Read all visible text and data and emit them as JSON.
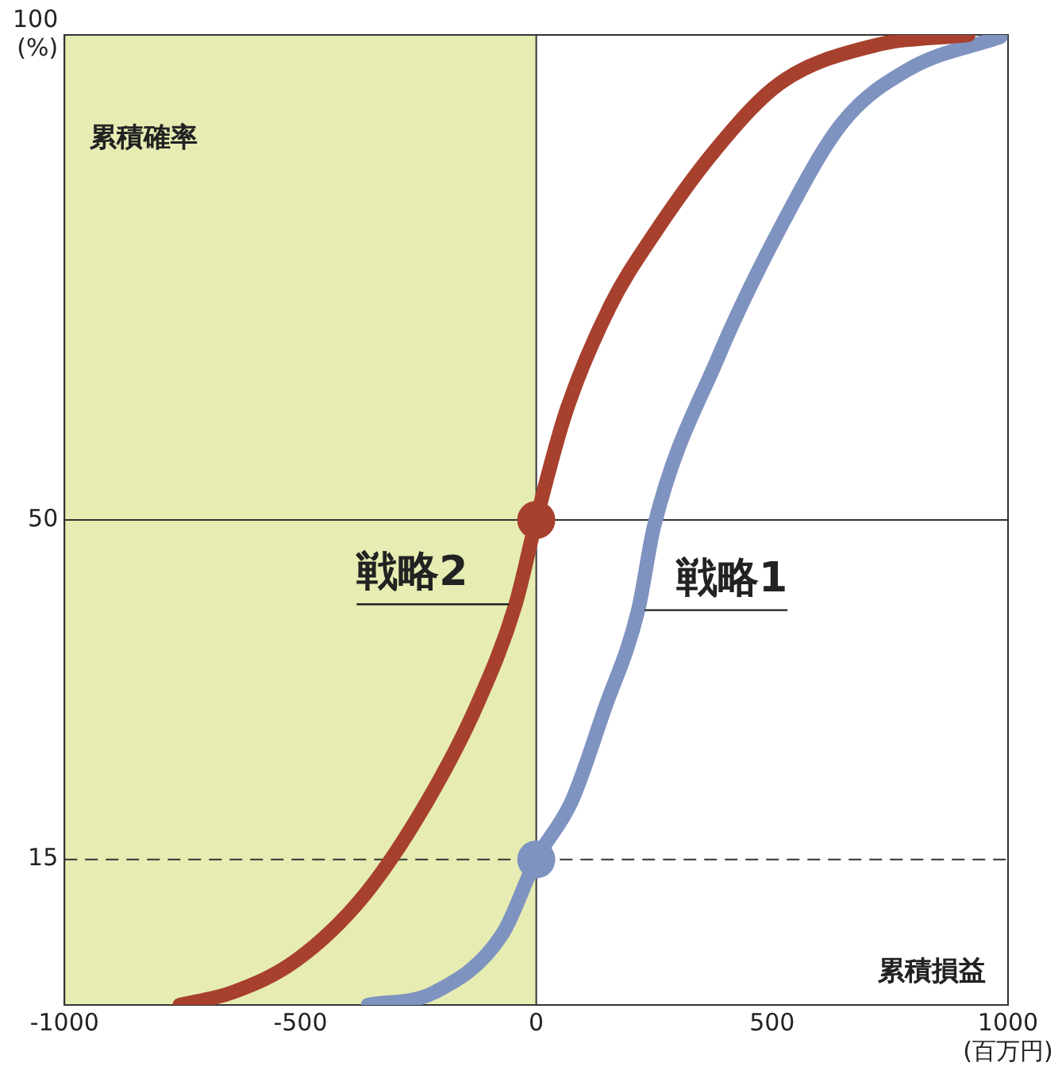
{
  "chart_data": {
    "type": "line",
    "xlabel": "累積損益",
    "ylabel": "累積確率",
    "xlim": [
      -1000,
      1000
    ],
    "xticks": [
      -1000,
      -500,
      0,
      500,
      {
        "value": 1000,
        "label": "1000\n(百万円)"
      }
    ],
    "ylim": [
      0,
      100
    ],
    "yticks": [
      15,
      50,
      {
        "value": 100,
        "label": "100\n(%)"
      }
    ],
    "grid": false,
    "legend": false,
    "marker": "none",
    "line_style": "solid",
    "bands": [
      {
        "axis": "x",
        "from": -1000,
        "to": 0,
        "color": "#e6ecb2"
      }
    ],
    "ref_lines": [
      {
        "axis": "x",
        "value": 0,
        "line_style": "solid",
        "color": "#333333"
      },
      {
        "axis": "y",
        "value": 50,
        "line_style": "solid",
        "color": "#333333"
      },
      {
        "axis": "y",
        "value": 15,
        "line_style": "dashed",
        "color": "#333333"
      }
    ],
    "series": [
      {
        "name": "戦略2",
        "color": "#a8402e",
        "x": [
          -756,
          -644,
          -509,
          -363,
          -231,
          -125,
          -44,
          0,
          62,
          156,
          250,
          384,
          516,
          716,
          916
        ],
        "values": [
          0,
          1.3,
          4.6,
          11.4,
          21,
          31,
          41.3,
          50,
          61,
          72,
          79.5,
          88.4,
          95,
          98.9,
          100
        ]
      },
      {
        "name": "戦略1",
        "color": "#7f93c0",
        "x": [
          -357,
          -216,
          -72,
          0,
          75,
          144,
          216,
          250,
          384,
          516,
          650,
          791,
          984
        ],
        "values": [
          0,
          1.3,
          7.3,
          15,
          21,
          30.4,
          40.7,
          49.4,
          66.6,
          80,
          91,
          96.5,
          99.8
        ]
      },
      {
        "type": "scatter",
        "marker": "circle",
        "x": [
          0
        ],
        "values": [
          50
        ],
        "color": "#a8402e"
      },
      {
        "type": "scatter",
        "marker": "circle",
        "x": [
          0
        ],
        "values": [
          15
        ],
        "color": "#7f93c0"
      }
    ]
  }
}
